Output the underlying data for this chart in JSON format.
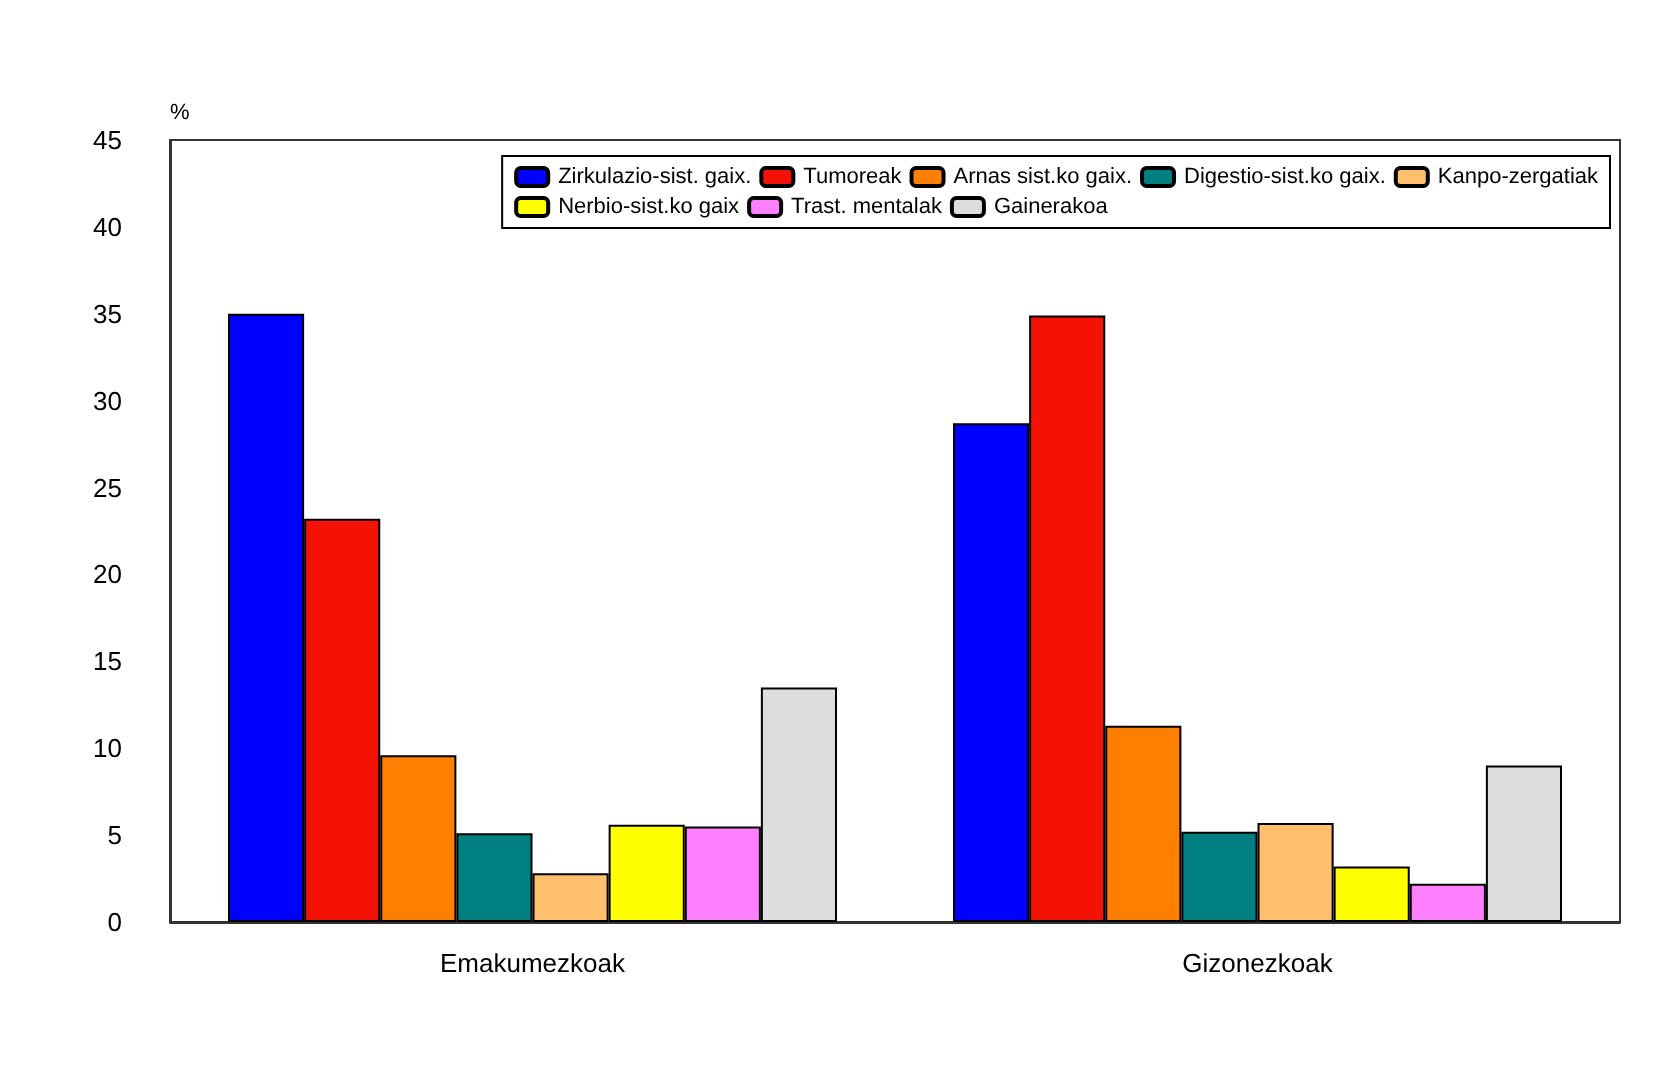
{
  "chart_data": {
    "type": "bar",
    "ylabel": "%",
    "categories": [
      "Emakumezkoak",
      "Gizonezkoak"
    ],
    "series": [
      {
        "name": "Zirkulazio-sist. gaix.",
        "color": "#0000ff",
        "values": [
          35.0,
          28.7
        ]
      },
      {
        "name": "Tumoreak",
        "color": "#f31205",
        "values": [
          23.2,
          34.9
        ]
      },
      {
        "name": "Arnas sist.ko gaix.",
        "color": "#ff7f00",
        "values": [
          9.6,
          11.3
        ]
      },
      {
        "name": "Digestio-sist.ko gaix.",
        "color": "#008080",
        "values": [
          5.1,
          5.2
        ]
      },
      {
        "name": "Kanpo-zergatiak",
        "color": "#ffbf6c",
        "values": [
          2.8,
          5.7
        ]
      },
      {
        "name": "Nerbio-sist.ko gaix",
        "color": "#ffff00",
        "values": [
          5.6,
          3.2
        ]
      },
      {
        "name": "Trast. mentalak",
        "color": "#ff80ff",
        "values": [
          5.5,
          2.2
        ]
      },
      {
        "name": "Gainerakoa",
        "color": "#dddddd",
        "values": [
          13.5,
          9.0
        ]
      }
    ],
    "ylim": [
      0,
      45
    ],
    "yticks": [
      0,
      5,
      10,
      15,
      20,
      25,
      30,
      35,
      40,
      45
    ],
    "grid": false,
    "legend": "top right"
  }
}
